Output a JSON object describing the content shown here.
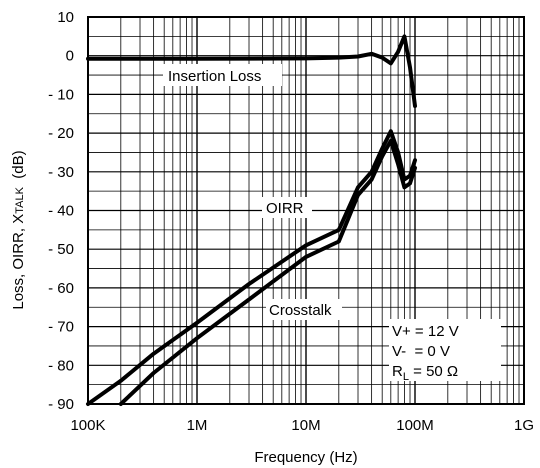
{
  "chart_data": {
    "type": "line",
    "xlabel": "Frequency (Hz)",
    "ylabel_parts": [
      "Loss, OIRR, X",
      "TALK",
      "  (dB)"
    ],
    "xscale": "log",
    "xlim": [
      100000,
      1000000000
    ],
    "ylim": [
      -90,
      10
    ],
    "grid": true,
    "x_tick_labels": [
      "100K",
      "1M",
      "10M",
      "100M",
      "1G"
    ],
    "y_tick_labels": [
      "10",
      "0",
      "- 10",
      "- 20",
      "- 30",
      "- 40",
      "- 50",
      "- 60",
      "- 70",
      "- 80",
      "- 90"
    ],
    "series": [
      {
        "name": "Insertion Loss",
        "x": [
          100000,
          1000000,
          10000000,
          20000000,
          30000000,
          40000000,
          50000000,
          60000000,
          70000000,
          80000000,
          90000000,
          100000000
        ],
        "y": [
          -0.8,
          -0.8,
          -0.7,
          -0.5,
          -0.2,
          0.5,
          -0.5,
          -2,
          1,
          5,
          -3,
          -13
        ]
      },
      {
        "name": "OIRR",
        "x": [
          100000,
          200000,
          400000,
          1000000,
          3000000,
          10000000,
          20000000,
          30000000,
          40000000,
          50000000,
          60000000,
          70000000,
          80000000,
          90000000,
          100000000
        ],
        "y": [
          -90,
          -84,
          -77,
          -69,
          -59,
          -49,
          -45,
          -34,
          -30,
          -24,
          -19.5,
          -25,
          -32,
          -31,
          -27
        ]
      },
      {
        "name": "Crosstalk",
        "x": [
          200000,
          400000,
          1000000,
          3000000,
          10000000,
          20000000,
          30000000,
          40000000,
          50000000,
          60000000,
          70000000,
          80000000,
          90000000,
          100000000
        ],
        "y": [
          -90,
          -82,
          -73,
          -63,
          -52,
          -48,
          -36,
          -32,
          -26,
          -22,
          -28,
          -34,
          -33,
          -29
        ]
      }
    ],
    "annotations": {
      "insertion_loss": "Insertion Loss",
      "oirr": "OIRR",
      "crosstalk": "Crosstalk",
      "cond_vplus": "V+ = 12 V",
      "cond_vminus": "V-  = 0 V",
      "cond_rl_main": "R",
      "cond_rl_sub": "L",
      "cond_rl_value": " = 50 Ω"
    }
  }
}
